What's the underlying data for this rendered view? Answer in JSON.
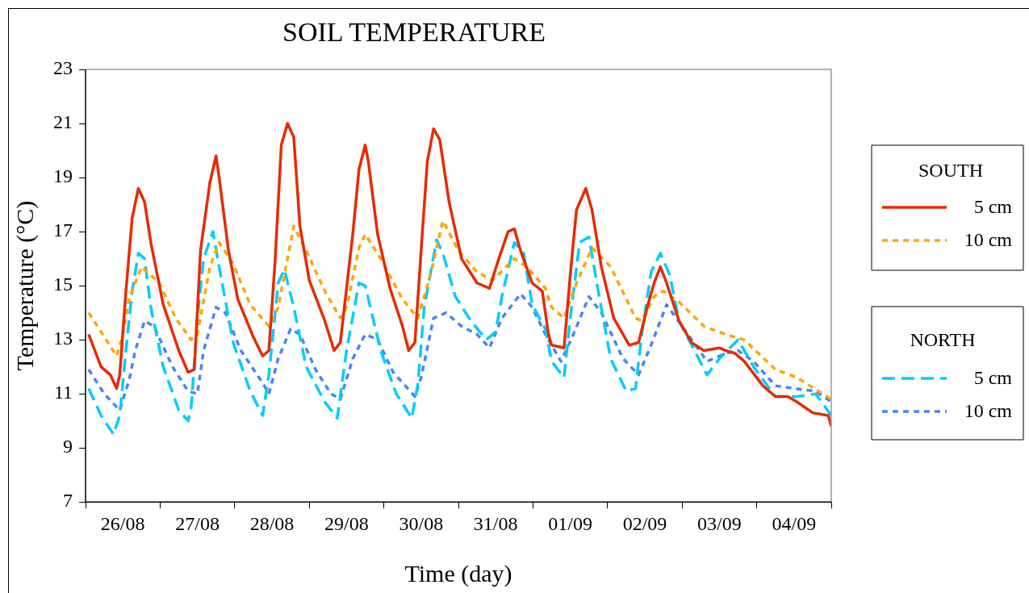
{
  "chart_data": {
    "type": "line",
    "title": "SOIL TEMPERATURE",
    "xlabel": "Time (day)",
    "ylabel": "Temperature (°C)",
    "annotations": [
      "SOUTH",
      "NORTH"
    ],
    "xlim": [
      "--08-26T00:00",
      "--09-05T00:00"
    ],
    "xticks": [
      {
        "value": "--08-26T00:00",
        "label": null
      },
      {
        "value": "--08-26T12:00",
        "label": "26/08"
      },
      {
        "value": "--08-27T00:00",
        "label": null
      },
      {
        "value": "--08-27T12:00",
        "label": "27/08"
      },
      {
        "value": "--08-28T00:00",
        "label": null
      },
      {
        "value": "--08-28T12:00",
        "label": "28/08"
      },
      {
        "value": "--08-29T00:00",
        "label": null
      },
      {
        "value": "--08-29T12:00",
        "label": "29/08"
      },
      {
        "value": "--08-30T00:00",
        "label": null
      },
      {
        "value": "--08-30T12:00",
        "label": "30/08"
      },
      {
        "value": "--08-31T00:00",
        "label": null
      },
      {
        "value": "--08-31T12:00",
        "label": "31/08"
      },
      {
        "value": "--09-01T00:00",
        "label": null
      },
      {
        "value": "--09-01T12:00",
        "label": "01/09"
      },
      {
        "value": "--09-02T00:00",
        "label": null
      },
      {
        "value": "--09-02T12:00",
        "label": "02/09"
      },
      {
        "value": "--09-03T00:00",
        "label": null
      },
      {
        "value": "--09-03T12:00",
        "label": "03/09"
      },
      {
        "value": "--09-04T00:00",
        "label": null
      },
      {
        "value": "--09-04T12:00",
        "label": "04/09"
      },
      {
        "value": "--09-05T00:00",
        "label": null
      }
    ],
    "ylim": [
      7,
      23
    ],
    "yticks": [
      7,
      9,
      11,
      13,
      15,
      17,
      19,
      21,
      23
    ],
    "grid": false,
    "legend": "right",
    "marker": "none",
    "series": [
      {
        "name": "5 cm",
        "color": "#e82a00",
        "line_style": "solid",
        "x": [
          "--08-26T01:00",
          "--08-26T05:00",
          "--08-26T08:00",
          "--08-26T10:00",
          "--08-26T11:00",
          "--08-26T13:00",
          "--08-26T15:00",
          "--08-26T17:00",
          "--08-26T19:00",
          "--08-26T21:00",
          "--08-27T01:00",
          "--08-27T06:00",
          "--08-27T09:00",
          "--08-27T11:00",
          "--08-27T13:00",
          "--08-27T16:00",
          "--08-27T18:00",
          "--08-27T19:00",
          "--08-27T22:00",
          "--08-28T01:00",
          "--08-28T06:00",
          "--08-28T09:00",
          "--08-28T11:00",
          "--08-28T13:00",
          "--08-28T15:00",
          "--08-28T17:00",
          "--08-28T19:00",
          "--08-28T21:00",
          "--08-29T00:00",
          "--08-29T05:00",
          "--08-29T08:00",
          "--08-29T10:00",
          "--08-29T14:00",
          "--08-29T16:00",
          "--08-29T18:00",
          "--08-29T19:00",
          "--08-29T22:00",
          "--08-30T02:00",
          "--08-30T06:00",
          "--08-30T08:00",
          "--08-30T10:00",
          "--08-30T12:00",
          "--08-30T14:00",
          "--08-30T16:00",
          "--08-30T18:00",
          "--08-30T21:00",
          "--08-31T01:00",
          "--08-31T06:00",
          "--08-31T10:00",
          "--08-31T13:00",
          "--08-31T16:00",
          "--08-31T18:00",
          "--08-31T20:00",
          "--08-31T23:45",
          "--09-01T03:00",
          "--09-01T05:00",
          "--09-01T06:00",
          "--09-01T10:00",
          "--09-01T12:00",
          "--09-01T14:00",
          "--09-01T17:00",
          "--09-01T19:00",
          "--09-01T22:00",
          "--09-02T02:00",
          "--09-02T07:00",
          "--09-02T10:00",
          "--09-02T13:00",
          "--09-02T15:00",
          "--09-02T17:00",
          "--09-02T19:00",
          "--09-02T23:00",
          "--09-03T03:00",
          "--09-03T07:00",
          "--09-03T12:00",
          "--09-03T14:00",
          "--09-03T17:00",
          "--09-03T20:00",
          "--09-04T02:00",
          "--09-04T06:00",
          "--09-04T10:00",
          "--09-04T13:00",
          "--09-04T18:00",
          "--09-04T23:00",
          "--09-05T00:00"
        ],
        "values": [
          13.2,
          12.0,
          11.7,
          11.2,
          11.7,
          14.8,
          17.5,
          18.6,
          18.1,
          16.6,
          14.3,
          12.6,
          11.8,
          11.9,
          16.3,
          18.8,
          19.8,
          19.0,
          16.3,
          14.5,
          13.1,
          12.4,
          12.6,
          15.9,
          20.2,
          21.0,
          20.5,
          17.2,
          15.2,
          13.7,
          12.6,
          12.9,
          16.9,
          19.3,
          20.2,
          19.6,
          16.9,
          14.9,
          13.5,
          12.6,
          12.9,
          16.3,
          19.6,
          20.8,
          20.4,
          18.1,
          16.0,
          15.1,
          14.9,
          16.0,
          17.0,
          17.1,
          16.3,
          15.1,
          14.8,
          13.2,
          12.8,
          12.7,
          15.4,
          17.8,
          18.6,
          17.8,
          15.7,
          13.8,
          12.8,
          12.9,
          14.3,
          15.1,
          15.7,
          15.1,
          13.7,
          12.9,
          12.6,
          12.7,
          12.6,
          12.5,
          12.2,
          11.3,
          10.9,
          10.9,
          10.7,
          10.3,
          10.2,
          9.8
        ]
      },
      {
        "name": "10 cm",
        "color": "#ffa500",
        "line_style": "dotted",
        "x": [
          "--08-26T01:00",
          "--08-26T10:00",
          "--08-26T12:00",
          "--08-26T14:00",
          "--08-26T18:00",
          "--08-26T23:45",
          "--08-27T05:00",
          "--08-27T10:00",
          "--08-27T12:00",
          "--08-27T16:00",
          "--08-27T19:00",
          "--08-27T23:30",
          "--08-28T05:00",
          "--08-28T11:00",
          "--08-28T14:00",
          "--08-28T17:00",
          "--08-28T19:00",
          "--08-28T23:00",
          "--08-29T05:00",
          "--08-29T10:00",
          "--08-29T12:00",
          "--08-29T16:00",
          "--08-29T18:00",
          "--08-29T23:00",
          "--08-30T06:00",
          "--08-30T11:00",
          "--08-30T15:00",
          "--08-30T19:00",
          "--08-31T00:00",
          "--08-31T06:00",
          "--08-31T11:00",
          "--08-31T18:00",
          "--08-31T22:00",
          "--09-01T04:00",
          "--09-01T06:00",
          "--09-01T10:00",
          "--09-01T14:00",
          "--09-01T19:00",
          "--09-02T01:00",
          "--09-02T09:00",
          "--09-02T11:00",
          "--09-02T15:00",
          "--09-02T18:00",
          "--09-02T23:00",
          "--09-03T07:00",
          "--09-03T14:00",
          "--09-03T20:00",
          "--09-04T06:00",
          "--09-04T13:00",
          "--09-05T00:00"
        ],
        "values": [
          14.0,
          12.4,
          13.2,
          14.5,
          15.7,
          15.1,
          13.8,
          13.0,
          13.2,
          15.7,
          16.6,
          15.8,
          14.3,
          13.5,
          14.2,
          16.0,
          17.2,
          16.3,
          14.8,
          13.8,
          14.2,
          16.4,
          16.9,
          16.0,
          14.5,
          13.8,
          15.4,
          17.4,
          16.3,
          15.5,
          15.2,
          16.0,
          15.7,
          14.9,
          14.2,
          13.8,
          15.1,
          16.4,
          15.7,
          13.8,
          13.7,
          14.6,
          14.8,
          14.4,
          13.5,
          13.2,
          13.0,
          11.9,
          11.6,
          10.8
        ]
      },
      {
        "name": "5 cm",
        "color": "#00ccff",
        "line_style": "dashed",
        "x": [
          "--08-26T01:00",
          "--08-26T05:00",
          "--08-26T09:00",
          "--08-26T11:00",
          "--08-26T13:00",
          "--08-26T15:00",
          "--08-26T17:00",
          "--08-26T19:00",
          "--08-26T21:00",
          "--08-27T01:00",
          "--08-27T06:00",
          "--08-27T09:00",
          "--08-27T10:00",
          "--08-27T12:00",
          "--08-27T14:00",
          "--08-27T17:00",
          "--08-27T19:00",
          "--08-27T23:30",
          "--08-28T05:00",
          "--08-28T09:00",
          "--08-28T11:00",
          "--08-28T14:00",
          "--08-28T16:00",
          "--08-28T19:00",
          "--08-28T23:00",
          "--08-29T05:00",
          "--08-29T09:00",
          "--08-29T12:00",
          "--08-29T16:00",
          "--08-29T18:00",
          "--08-29T23:00",
          "--08-30T04:00",
          "--08-30T09:00",
          "--08-30T11:00",
          "--08-30T13:00",
          "--08-30T17:00",
          "--08-30T19:00",
          "--08-30T23:00",
          "--08-31T04:00",
          "--08-31T09:00",
          "--08-31T12:00",
          "--08-31T14:00",
          "--08-31T18:00",
          "--08-31T21:00",
          "--08-31T23:45",
          "--09-01T04:00",
          "--09-01T06:00",
          "--09-01T10:00",
          "--09-01T12:00",
          "--09-01T15:00",
          "--09-01T18:00",
          "--09-01T21:00",
          "--09-02T01:00",
          "--09-02T06:00",
          "--09-02T09:00",
          "--09-02T11:00",
          "--09-02T14:00",
          "--09-02T17:00",
          "--09-02T20:00",
          "--09-02T23:00",
          "--09-03T04:00",
          "--09-03T08:00",
          "--09-03T12:00",
          "--09-03T18:00",
          "--09-03T23:00",
          "--09-04T06:00",
          "--09-04T13:00",
          "--09-04T19:00",
          "--09-05T00:00"
        ],
        "values": [
          11.2,
          10.2,
          9.5,
          10.2,
          12.6,
          14.8,
          16.2,
          16.0,
          14.2,
          12.0,
          10.4,
          10.0,
          10.5,
          13.8,
          16.0,
          17.0,
          15.7,
          12.9,
          11.1,
          10.2,
          11.7,
          15.1,
          15.6,
          14.2,
          12.0,
          10.7,
          10.1,
          12.6,
          15.1,
          15.0,
          12.6,
          11.0,
          10.1,
          11.4,
          14.2,
          16.7,
          16.2,
          14.6,
          13.7,
          13.0,
          13.3,
          14.6,
          16.6,
          16.2,
          14.3,
          13.4,
          12.2,
          11.6,
          13.8,
          16.6,
          16.8,
          14.8,
          12.3,
          11.1,
          11.2,
          13.2,
          15.5,
          16.2,
          15.4,
          13.7,
          12.6,
          11.7,
          12.3,
          13.0,
          12.0,
          10.9,
          10.9,
          11.0,
          10.2
        ]
      },
      {
        "name": "10 cm",
        "color": "#4a86f0",
        "line_style": "dotted",
        "x": [
          "--08-26T01:00",
          "--08-26T06:00",
          "--08-26T11:00",
          "--08-26T14:00",
          "--08-26T16:00",
          "--08-26T19:00",
          "--08-26T22:00",
          "--08-27T04:00",
          "--08-27T09:00",
          "--08-27T12:00",
          "--08-27T14:00",
          "--08-27T18:00",
          "--08-27T21:00",
          "--08-28T02:00",
          "--08-28T09:00",
          "--08-28T11:00",
          "--08-28T14:00",
          "--08-28T18:00",
          "--08-28T21:00",
          "--08-29T02:00",
          "--08-29T07:00",
          "--08-29T10:00",
          "--08-29T14:00",
          "--08-29T18:00",
          "--08-29T22:00",
          "--08-30T03:00",
          "--08-30T10:00",
          "--08-30T12:00",
          "--08-30T16:00",
          "--08-30T20:00",
          "--08-31T01:00",
          "--08-31T06:00",
          "--08-31T10:00",
          "--08-31T14:00",
          "--08-31T20:00",
          "--08-31T23:45",
          "--09-01T04:00",
          "--09-01T09:00",
          "--09-01T13:00",
          "--09-01T18:00",
          "--09-01T22:00",
          "--09-02T05:00",
          "--09-02T10:00",
          "--09-02T14:00",
          "--09-02T19:00",
          "--09-03T00:00",
          "--09-03T08:00",
          "--09-03T14:00",
          "--09-03T18:00",
          "--09-03T23:00",
          "--09-04T06:00",
          "--09-04T12:00",
          "--09-04T19:00",
          "--09-05T00:00"
        ],
        "values": [
          11.9,
          11.0,
          10.4,
          11.5,
          12.6,
          13.7,
          13.5,
          12.0,
          11.1,
          11.0,
          12.6,
          14.2,
          14.0,
          12.6,
          11.4,
          11.0,
          12.3,
          13.4,
          13.2,
          11.9,
          11.0,
          10.8,
          12.3,
          13.2,
          13.0,
          11.8,
          10.9,
          11.6,
          13.8,
          14.0,
          13.5,
          13.2,
          12.7,
          13.8,
          14.7,
          14.2,
          13.2,
          12.2,
          13.2,
          14.6,
          14.0,
          12.3,
          11.7,
          12.8,
          14.3,
          13.5,
          12.2,
          12.5,
          12.6,
          12.2,
          11.3,
          11.2,
          11.1,
          10.7
        ]
      }
    ]
  }
}
